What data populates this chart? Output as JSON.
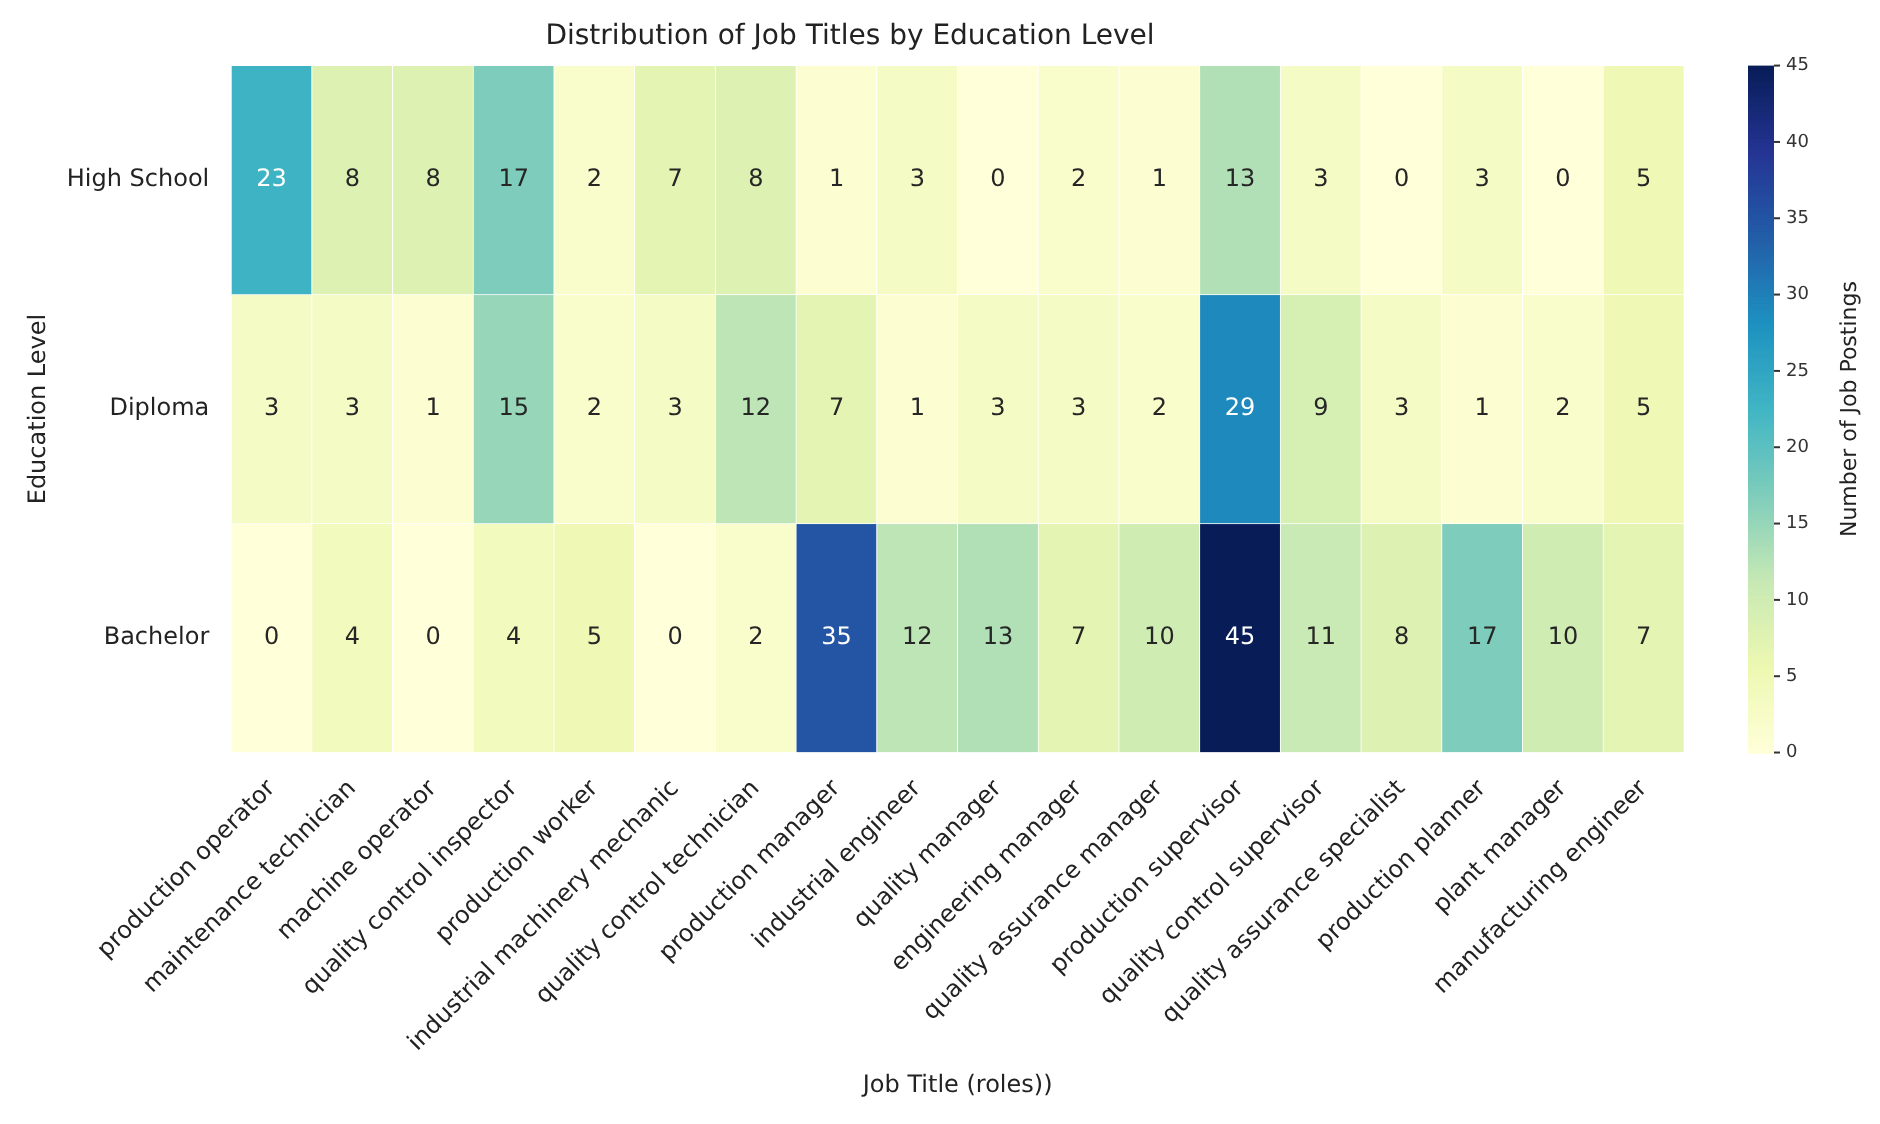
{
  "chart_data": {
    "type": "heatmap",
    "title": "Distribution of Job Titles by Education Level",
    "xlabel": "Job Title (roles))",
    "ylabel": "Education Level",
    "clabel": "Number of Job Postings",
    "categories": [
      "production operator",
      "maintenance technician",
      "machine operator",
      "quality control inspector",
      "production worker",
      "industrial machinery mechanic",
      "quality control technician",
      "production manager",
      "industrial engineer",
      "quality manager",
      "engineering manager",
      "quality assurance manager",
      "production supervisor",
      "quality control supervisor",
      "quality assurance specialist",
      "production planner",
      "plant manager",
      "manufacturing engineer"
    ],
    "y_categories": [
      "High School",
      "Diploma",
      "Bachelor"
    ],
    "cells": [
      [
        23,
        8,
        8,
        17,
        2,
        7,
        8,
        1,
        3,
        0,
        2,
        1,
        13,
        3,
        0,
        3,
        0,
        5
      ],
      [
        3,
        3,
        1,
        15,
        2,
        3,
        12,
        7,
        1,
        3,
        3,
        2,
        29,
        9,
        3,
        1,
        2,
        5
      ],
      [
        0,
        4,
        0,
        4,
        5,
        0,
        2,
        35,
        12,
        13,
        7,
        10,
        45,
        11,
        8,
        17,
        10,
        7
      ]
    ],
    "clim": [
      0,
      45
    ],
    "cticks": [
      0,
      5,
      10,
      15,
      20,
      25,
      30,
      35,
      40,
      45
    ],
    "data_labels": true
  }
}
